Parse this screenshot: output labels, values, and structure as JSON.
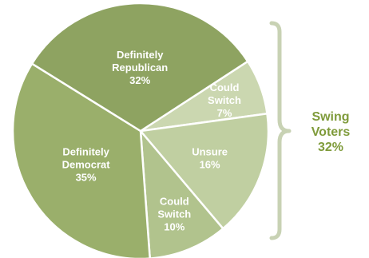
{
  "chart_data": {
    "type": "pie",
    "title": "",
    "slices": [
      {
        "lines": [
          "Could",
          "Switch",
          "7%"
        ],
        "value": 7,
        "color": "#cbd7b0"
      },
      {
        "lines": [
          "Unsure",
          "16%"
        ],
        "value": 16,
        "color": "#c0cfa1"
      },
      {
        "lines": [
          "Could",
          "Switch",
          "10%"
        ],
        "value": 10,
        "color": "#b1c38d"
      },
      {
        "lines": [
          "Definitely",
          "Democrat",
          "35%"
        ],
        "value": 35,
        "color": "#9aaf6b"
      },
      {
        "lines": [
          "Definitely",
          "Republican",
          "32%"
        ],
        "value": 32,
        "color": "#8ea361"
      }
    ],
    "annotation": {
      "lines": [
        "Swing",
        "Voters",
        "32%"
      ],
      "color": "#7f9b3b",
      "bracket_color": "#c8d2b4"
    }
  }
}
